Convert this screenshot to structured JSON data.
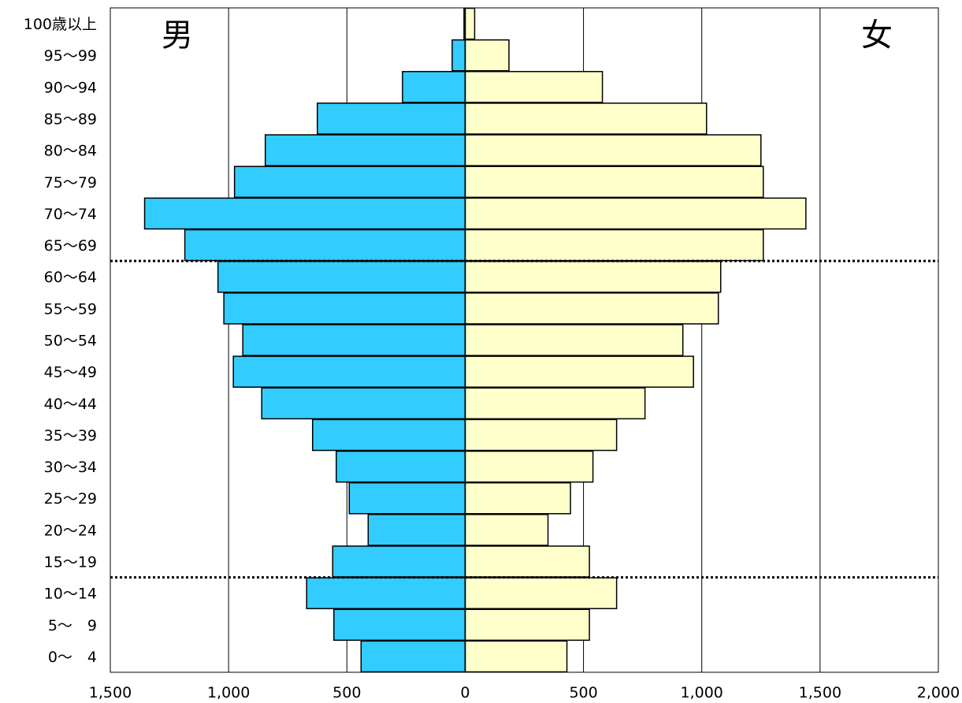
{
  "chart_data": {
    "type": "bar",
    "orientation": "horizontal-pyramid",
    "categories": [
      "0〜　4",
      "5〜　9",
      "10〜14",
      "15〜19",
      "20〜24",
      "25〜29",
      "30〜34",
      "35〜39",
      "40〜44",
      "45〜49",
      "50〜54",
      "55〜59",
      "60〜64",
      "65〜69",
      "70〜74",
      "75〜79",
      "80〜84",
      "85〜89",
      "90〜94",
      "95〜99",
      "100歳以上"
    ],
    "series": [
      {
        "name": "男",
        "color": "#33ccff",
        "values": [
          440,
          555,
          670,
          560,
          410,
          490,
          545,
          645,
          860,
          980,
          940,
          1020,
          1045,
          1185,
          1355,
          975,
          845,
          625,
          265,
          55,
          5
        ]
      },
      {
        "name": "女",
        "color": "#ffffcc",
        "values": [
          430,
          525,
          640,
          525,
          350,
          445,
          540,
          640,
          760,
          965,
          920,
          1070,
          1080,
          1260,
          1440,
          1260,
          1250,
          1020,
          580,
          185,
          40
        ]
      }
    ],
    "x_ticks": [
      "1,500",
      "1,000",
      "500",
      "0",
      "500",
      "1,000",
      "1,500",
      "2,000"
    ],
    "xlim": [
      -1500,
      2000
    ],
    "reference_lines_between": [
      [
        "10〜14",
        "15〜19"
      ],
      [
        "60〜64",
        "65〜69"
      ]
    ],
    "grid": "vertical",
    "gender_labels": {
      "left": "男",
      "right": "女"
    }
  }
}
